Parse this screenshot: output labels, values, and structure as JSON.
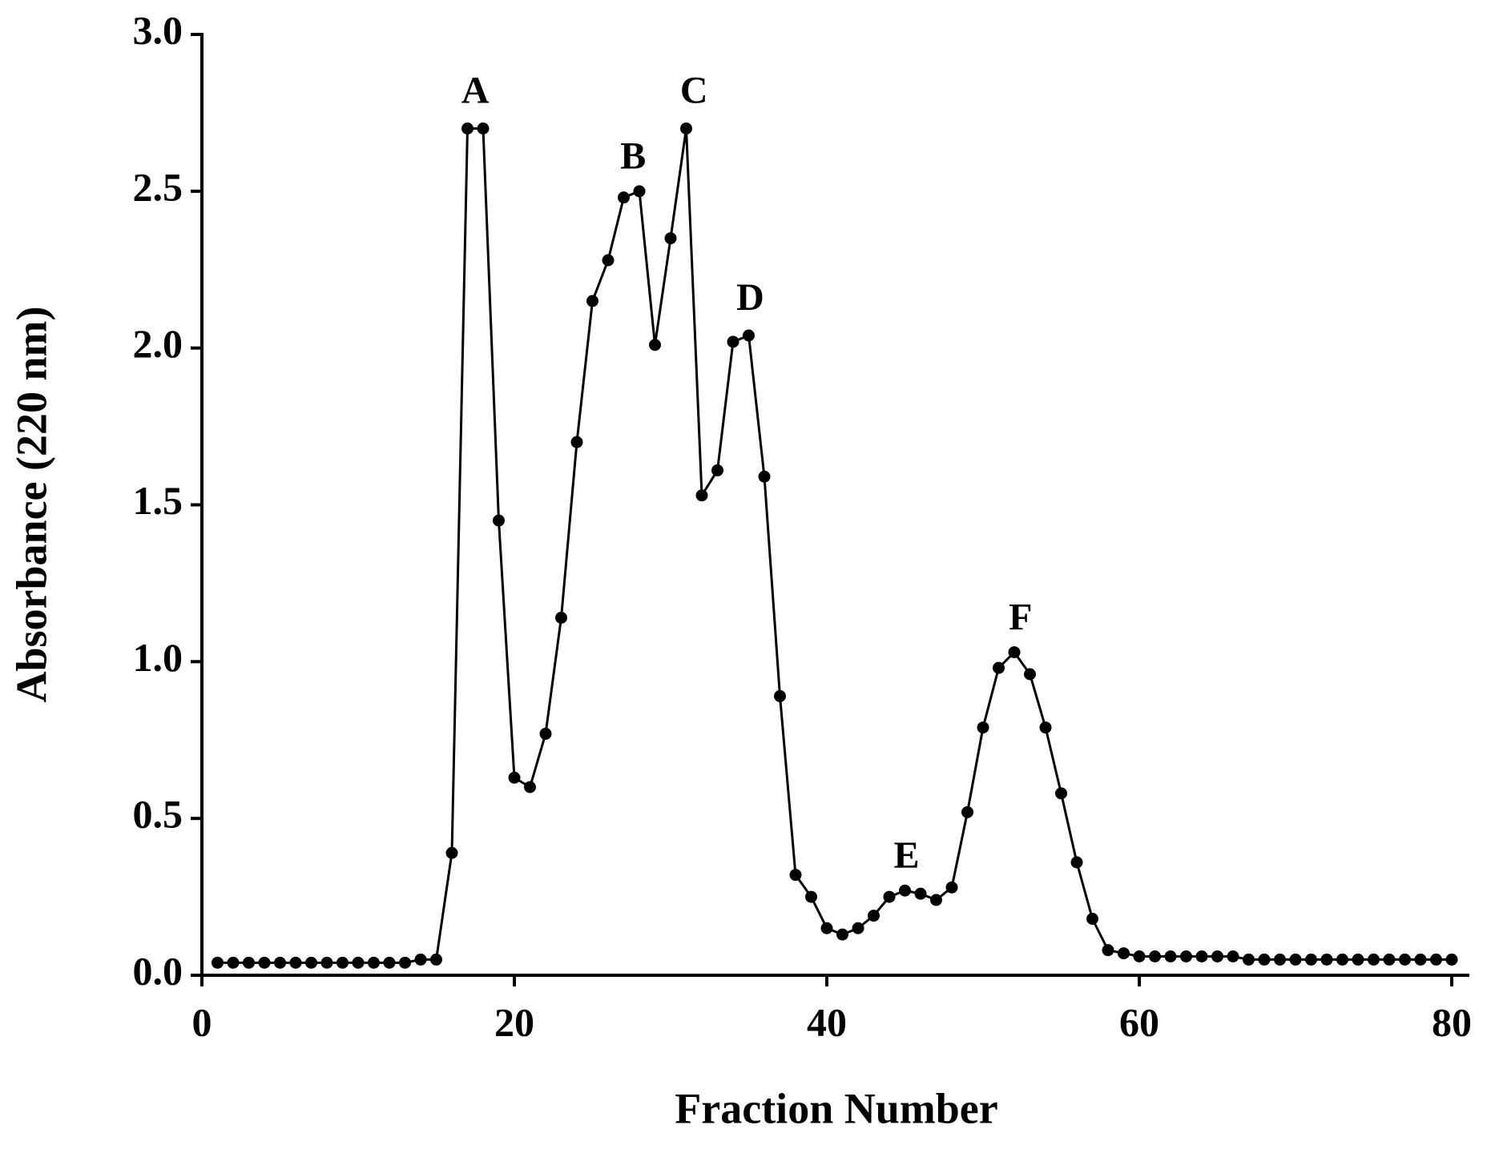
{
  "chart_data": {
    "type": "line",
    "x_label": "Fraction Number",
    "y_label": "Absorbance (220 nm)",
    "x": [
      1,
      2,
      3,
      4,
      5,
      6,
      7,
      8,
      9,
      10,
      11,
      12,
      13,
      14,
      15,
      16,
      17,
      18,
      19,
      20,
      21,
      22,
      23,
      24,
      25,
      26,
      27,
      28,
      29,
      30,
      31,
      32,
      33,
      34,
      35,
      36,
      37,
      38,
      39,
      40,
      41,
      42,
      43,
      44,
      45,
      46,
      47,
      48,
      49,
      50,
      51,
      52,
      53,
      54,
      55,
      56,
      57,
      58,
      59,
      60,
      61,
      62,
      63,
      64,
      65,
      66,
      67,
      68,
      69,
      70,
      71,
      72,
      73,
      74,
      75,
      76,
      77,
      78,
      79,
      80
    ],
    "series": [
      {
        "color": "#000000",
        "values": [
          0.04,
          0.04,
          0.04,
          0.04,
          0.04,
          0.04,
          0.04,
          0.04,
          0.04,
          0.04,
          0.04,
          0.04,
          0.04,
          0.05,
          0.05,
          0.39,
          2.7,
          2.7,
          1.45,
          0.63,
          0.6,
          0.77,
          1.14,
          1.7,
          2.15,
          2.28,
          2.48,
          2.5,
          2.01,
          2.35,
          2.7,
          1.53,
          1.61,
          2.02,
          2.04,
          1.59,
          0.89,
          0.32,
          0.25,
          0.15,
          0.13,
          0.15,
          0.19,
          0.25,
          0.27,
          0.26,
          0.24,
          0.28,
          0.52,
          0.79,
          0.98,
          1.03,
          0.96,
          0.79,
          0.58,
          0.36,
          0.18,
          0.08,
          0.07,
          0.06,
          0.06,
          0.06,
          0.06,
          0.06,
          0.06,
          0.06,
          0.05,
          0.05,
          0.05,
          0.05,
          0.05,
          0.05,
          0.05,
          0.05,
          0.05,
          0.05,
          0.05,
          0.05,
          0.05,
          0.05
        ]
      }
    ],
    "xlim": [
      0,
      80
    ],
    "ylim": [
      0,
      3
    ],
    "xticks": [
      0,
      20,
      40,
      60,
      80
    ],
    "yticks": [
      {
        "value": 0,
        "label": "0.0"
      },
      0.5,
      {
        "value": 1,
        "label": "1.0"
      },
      1.5,
      {
        "value": 2,
        "label": "2.0"
      },
      2.5,
      {
        "value": 3,
        "label": "3.0"
      }
    ],
    "annotations": [
      {
        "text": "A",
        "x": 17.5,
        "y": 2.81
      },
      {
        "text": "B",
        "x": 27.6,
        "y": 2.6
      },
      {
        "text": "C",
        "x": 31.5,
        "y": 2.81
      },
      {
        "text": "D",
        "x": 35.1,
        "y": 2.15
      },
      {
        "text": "E",
        "x": 45.1,
        "y": 0.37
      },
      {
        "text": "F",
        "x": 52.4,
        "y": 1.13
      }
    ]
  }
}
